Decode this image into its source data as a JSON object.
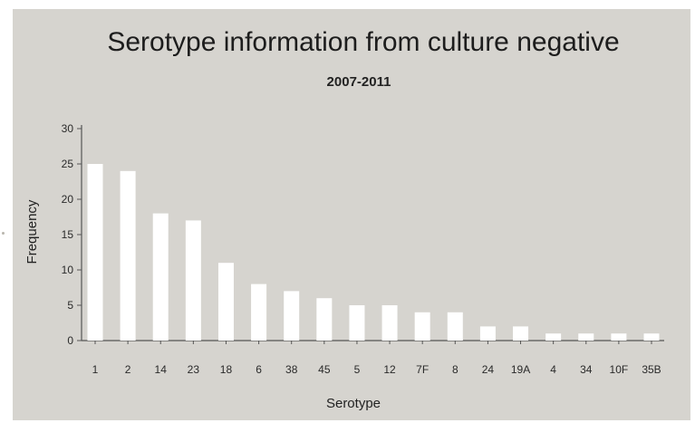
{
  "chart_data": {
    "type": "bar",
    "title": "Serotype information from culture negative",
    "subtitle": "2007-2011",
    "xlabel": "Serotype",
    "ylabel": "Frequency",
    "ylim": [
      0,
      30
    ],
    "yticks": [
      0,
      5,
      10,
      15,
      20,
      25,
      30
    ],
    "grid": false,
    "legend": "none",
    "categories": [
      "1",
      "2",
      "14",
      "23",
      "18",
      "6",
      "38",
      "45",
      "5",
      "12",
      "7F",
      "8",
      "24",
      "19A",
      "4",
      "34",
      "10F",
      "35B"
    ],
    "values": [
      25,
      24,
      18,
      17,
      11,
      8,
      7,
      6,
      5,
      5,
      4,
      4,
      2,
      2,
      1,
      1,
      1,
      1
    ],
    "colors": {
      "background": "#d6d4cf",
      "bar": "#ffffff",
      "axis": "#555555"
    }
  }
}
